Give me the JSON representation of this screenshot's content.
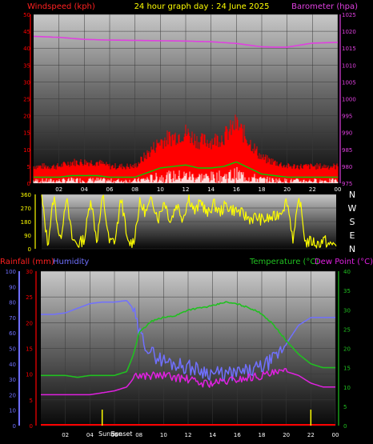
{
  "header": {
    "left_label": "Windspeed (kph)",
    "title": "24 hour graph day : 24 June 2025",
    "right_label": "Barometer (hpa)"
  },
  "bottom_header": {
    "rainfall_label": "Rainfall (mm)",
    "humidity_label": "Humidity",
    "temperature_label": "Temperature (°C)",
    "dewpoint_label": "Dew Point (°C)"
  },
  "annotations": {
    "sunrise": "Sunrise",
    "sunset": "Sunset"
  },
  "colors": {
    "windspeed": "#ff0000",
    "windgust_band": "#ffffff",
    "wind_avg": "#00d000",
    "barometer": "#e040e0",
    "direction": "#ffff00",
    "temperature": "#20c020",
    "dewpoint": "#e020e0",
    "humidity": "#7070ff",
    "rainfall": "#ff0000",
    "sun_marker": "#ffff00"
  },
  "chart_data": [
    {
      "type": "area",
      "x_tick_labels": [
        "02",
        "04",
        "06",
        "08",
        "10",
        "12",
        "14",
        "16",
        "18",
        "20",
        "22",
        "00"
      ],
      "left_axis": {
        "ticks": [
          0,
          5,
          10,
          15,
          20,
          25,
          30,
          35,
          40,
          45,
          50
        ],
        "ylim": [
          0,
          50
        ]
      },
      "right_axis": {
        "ticks": [
          975,
          980,
          985,
          990,
          995,
          1000,
          1005,
          1010,
          1015,
          1020,
          1025
        ],
        "ylim": [
          975,
          1025
        ]
      },
      "series": [
        {
          "name": "Windspeed (kph)",
          "x": [
            0,
            1,
            2,
            3,
            4,
            5,
            6,
            7,
            8,
            9,
            10,
            11,
            12,
            13,
            14,
            15,
            16,
            17,
            18,
            19,
            20,
            21,
            22,
            23,
            24
          ],
          "values": [
            4,
            4,
            4,
            5,
            5,
            5,
            4,
            4,
            4,
            7,
            10,
            11,
            12,
            10,
            10,
            11,
            14,
            10,
            6,
            5,
            4,
            4,
            4,
            4,
            4
          ]
        },
        {
          "name": "Barometer (hpa)",
          "x": [
            0,
            2,
            4,
            6,
            8,
            10,
            12,
            14,
            16,
            17,
            18,
            19,
            20,
            22,
            24
          ],
          "values": [
            1018.5,
            1018.2,
            1017.6,
            1017.4,
            1017.3,
            1017.2,
            1017.1,
            1016.9,
            1016.4,
            1015.9,
            1015.4,
            1015.3,
            1015.3,
            1016.5,
            1016.7
          ]
        }
      ]
    },
    {
      "type": "line",
      "x_tick_labels": [],
      "y_tick_labels": [
        "360",
        "270",
        "180",
        "90",
        "0"
      ],
      "right_labels": [
        "N",
        "W",
        "S",
        "E",
        "N"
      ],
      "ylim": [
        0,
        360
      ],
      "series": [
        {
          "name": "Wind direction",
          "x": [
            0,
            0.5,
            1,
            1.5,
            2,
            2.5,
            3,
            3.5,
            4,
            4.5,
            5,
            5.5,
            6,
            6.5,
            7,
            7.5,
            8,
            8.5,
            9,
            9.5,
            10,
            10.5,
            11,
            11.5,
            12,
            12.5,
            13,
            13.5,
            14,
            14.5,
            15,
            15.5,
            16,
            16.5,
            17,
            17.5,
            18,
            18.5,
            19,
            19.5,
            20,
            20.5,
            21,
            21.5,
            22,
            22.5,
            23,
            23.5,
            24
          ],
          "values": [
            340,
            30,
            350,
            40,
            345,
            60,
            30,
            70,
            340,
            50,
            355,
            40,
            60,
            345,
            30,
            50,
            300,
            240,
            330,
            200,
            320,
            180,
            300,
            200,
            340,
            240,
            320,
            220,
            300,
            240,
            290,
            260,
            250,
            220,
            200,
            210,
            190,
            200,
            210,
            250,
            320,
            60,
            340,
            40,
            50,
            30,
            60,
            20,
            40
          ]
        }
      ]
    },
    {
      "type": "line",
      "x_tick_labels": [
        "02",
        "04",
        "06",
        "08",
        "10",
        "12",
        "14",
        "16",
        "18",
        "20",
        "22",
        "00"
      ],
      "humidity_axis": {
        "ticks": [
          0,
          10,
          20,
          30,
          40,
          50,
          60,
          70,
          80,
          90,
          100
        ],
        "ylim": [
          0,
          100
        ]
      },
      "rain_axis": {
        "ticks": [
          0,
          5,
          10,
          15,
          20,
          25,
          30
        ],
        "ylim": [
          0,
          30
        ]
      },
      "temp_axis": {
        "ticks": [
          0,
          5,
          10,
          15,
          20,
          25,
          30,
          35,
          40
        ],
        "ylim": [
          0,
          40
        ]
      },
      "series": [
        {
          "name": "Humidity",
          "x": [
            0,
            1,
            2,
            3,
            4,
            5,
            6,
            7,
            7.5,
            8,
            9,
            10,
            11,
            12,
            13,
            14,
            15,
            16,
            17,
            18,
            19,
            20,
            21,
            22,
            23,
            24
          ],
          "values": [
            72,
            72,
            73,
            76,
            79,
            80,
            80,
            81,
            76,
            60,
            47,
            42,
            40,
            38,
            36,
            34,
            33,
            34,
            35,
            38,
            43,
            53,
            65,
            70,
            70,
            70
          ]
        },
        {
          "name": "Temperature (°C)",
          "x": [
            0,
            1,
            2,
            3,
            4,
            5,
            6,
            7,
            7.5,
            8,
            9,
            10,
            11,
            12,
            13,
            14,
            15,
            16,
            17,
            18,
            19,
            20,
            21,
            22,
            23,
            24
          ],
          "values": [
            13,
            13,
            13,
            12.5,
            13,
            13,
            13,
            14,
            18,
            24,
            27,
            28,
            28.5,
            30,
            30.5,
            31,
            32,
            31.5,
            30.5,
            29,
            26,
            22,
            18.5,
            16,
            15,
            15
          ]
        },
        {
          "name": "Dew Point (°C)",
          "x": [
            0,
            1,
            2,
            3,
            4,
            5,
            6,
            7,
            7.5,
            8,
            9,
            10,
            11,
            12,
            13,
            14,
            15,
            16,
            17,
            18,
            19,
            20,
            21,
            22,
            23,
            24
          ],
          "values": [
            8,
            8,
            8,
            8,
            8,
            8.5,
            9,
            10,
            12,
            13,
            13,
            13,
            12.5,
            12,
            11,
            11,
            11.5,
            12,
            12.5,
            13,
            13.5,
            14,
            13,
            11,
            10,
            10
          ]
        },
        {
          "name": "Rainfall (mm)",
          "x": [
            0,
            24
          ],
          "values": [
            0,
            0
          ]
        }
      ],
      "sunrise_hour": 5.0,
      "sunset_hour": 22.0
    }
  ]
}
